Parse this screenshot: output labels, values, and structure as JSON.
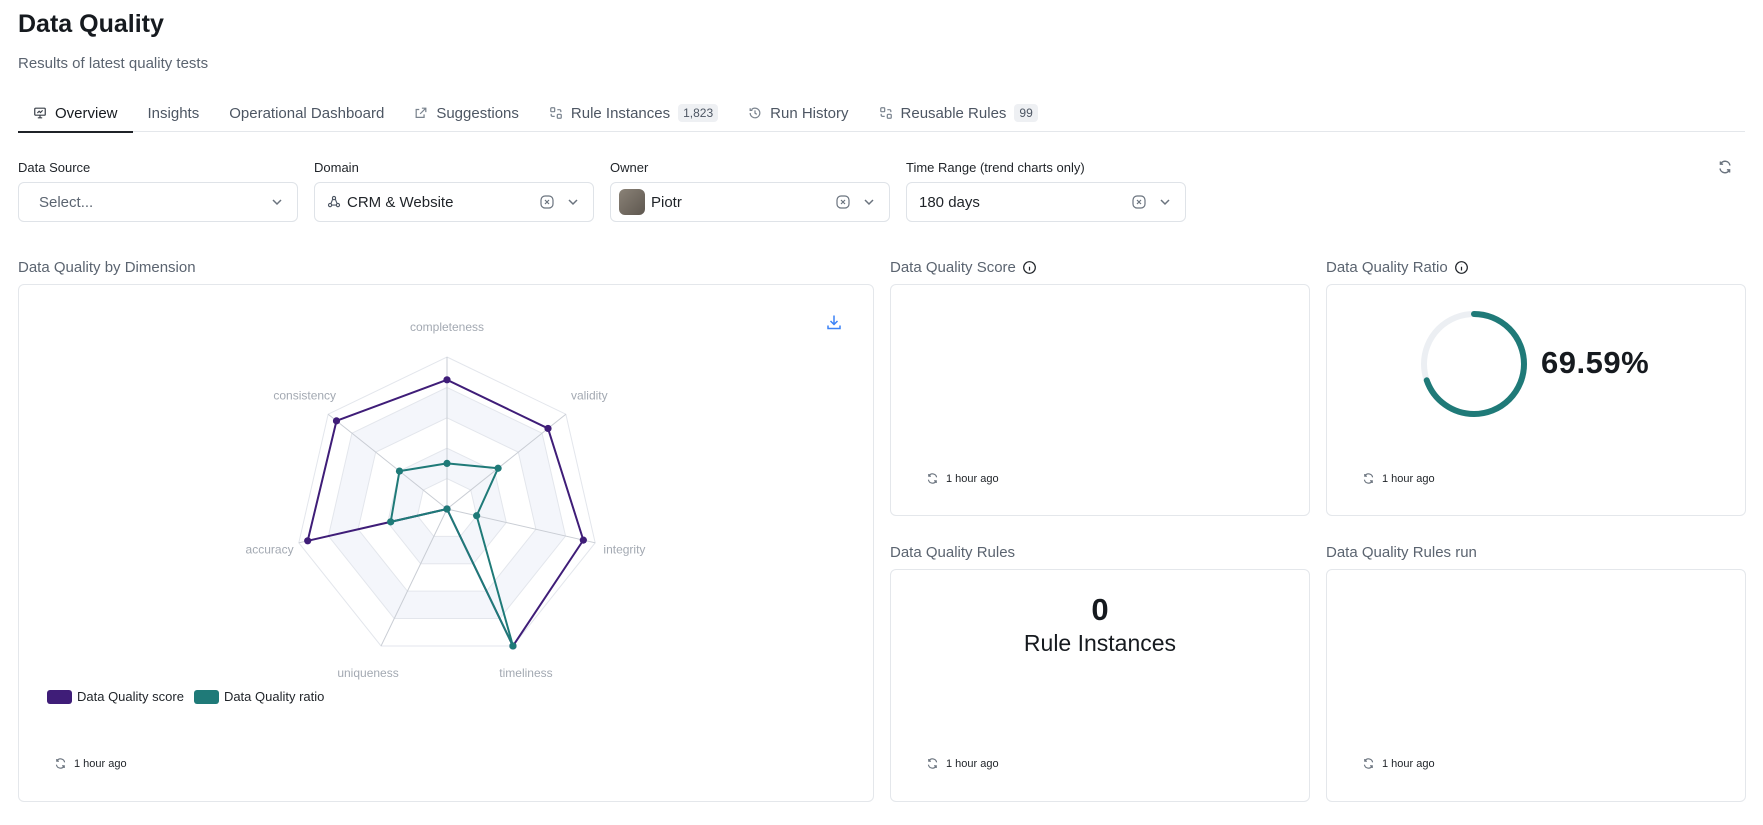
{
  "page": {
    "title": "Data Quality",
    "subtitle": "Results of latest quality tests"
  },
  "tabs": [
    {
      "label": "Overview",
      "icon": "presentation-icon",
      "active": true,
      "badge": null
    },
    {
      "label": "Insights",
      "icon": null,
      "active": false,
      "badge": null
    },
    {
      "label": "Operational Dashboard",
      "icon": null,
      "active": false,
      "badge": null
    },
    {
      "label": "Suggestions",
      "icon": "external-link-icon",
      "active": false,
      "badge": null
    },
    {
      "label": "Rule Instances",
      "icon": "rules-icon",
      "active": false,
      "badge": "1,823"
    },
    {
      "label": "Run History",
      "icon": "history-icon",
      "active": false,
      "badge": null
    },
    {
      "label": "Reusable Rules",
      "icon": "rules-icon",
      "active": false,
      "badge": "99"
    }
  ],
  "filters": {
    "data_source": {
      "label": "Data Source",
      "placeholder": "Select..."
    },
    "domain": {
      "label": "Domain",
      "value": "CRM & Website"
    },
    "owner": {
      "label": "Owner",
      "value": "Piotr"
    },
    "time_range": {
      "label": "Time Range (trend charts only)",
      "value": "180 days"
    }
  },
  "widgets": {
    "dimension": {
      "title": "Data Quality by Dimension",
      "updated": "1 hour ago"
    },
    "score": {
      "title": "Data Quality Score",
      "updated": "1 hour ago"
    },
    "ratio": {
      "title": "Data Quality Ratio",
      "value": "69.59%",
      "fraction": 0.6959,
      "updated": "1 hour ago"
    },
    "rules": {
      "title": "Data Quality Rules",
      "count": "0",
      "label": "Rule Instances",
      "updated": "1 hour ago"
    },
    "rules_run": {
      "title": "Data Quality Rules run",
      "updated": "1 hour ago"
    }
  },
  "colors": {
    "score": "#3f1d78",
    "ratio": "#1f7a78",
    "accent": "#3b82f6"
  },
  "chart_data": {
    "type": "radar",
    "axes": [
      "completeness",
      "validity",
      "integrity",
      "timeliness",
      "uniqueness",
      "accuracy",
      "consistency"
    ],
    "range": [
      0,
      100
    ],
    "series": [
      {
        "name": "Data Quality score",
        "values": [
          85,
          85,
          92,
          100,
          0,
          94,
          93
        ]
      },
      {
        "name": "Data Quality ratio",
        "values": [
          30,
          43,
          20,
          100,
          0,
          38,
          40
        ]
      }
    ],
    "legend": "bottom-left"
  }
}
